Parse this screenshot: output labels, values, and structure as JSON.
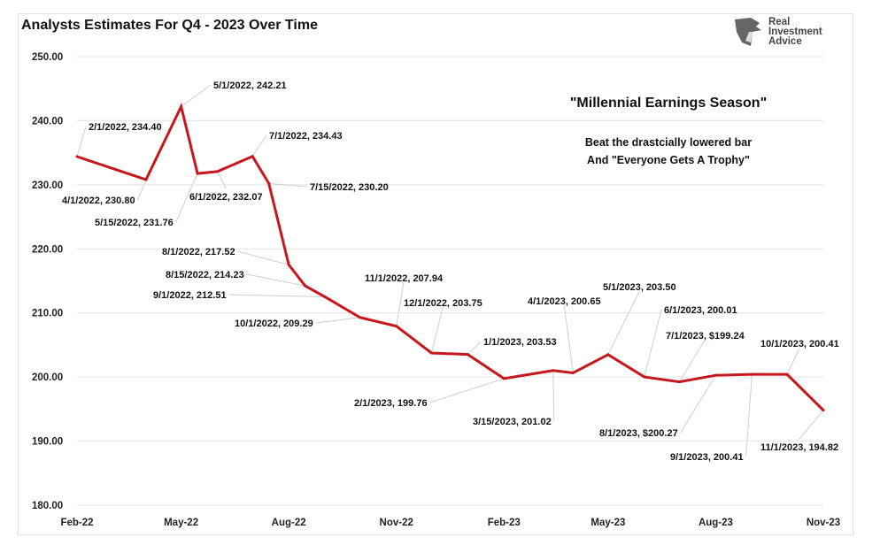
{
  "chart_data": {
    "type": "line",
    "title": "Analysts Estimates For Q4 - 2023 Over Time",
    "xlabel": "",
    "ylabel": "",
    "ylim": [
      180,
      250
    ],
    "yticks": [
      "250.00",
      "240.00",
      "230.00",
      "220.00",
      "210.00",
      "200.00",
      "190.00",
      "180.00"
    ],
    "xlim": [
      "2022-02-01",
      "2023-11-01"
    ],
    "xticks": [
      {
        "date": "2022-02-01",
        "label": "Feb-22"
      },
      {
        "date": "2022-05-01",
        "label": "May-22"
      },
      {
        "date": "2022-08-01",
        "label": "Aug-22"
      },
      {
        "date": "2022-11-01",
        "label": "Nov-22"
      },
      {
        "date": "2023-02-01",
        "label": "Feb-23"
      },
      {
        "date": "2023-05-01",
        "label": "May-23"
      },
      {
        "date": "2023-08-01",
        "label": "Aug-23"
      },
      {
        "date": "2023-11-01",
        "label": "Nov-23"
      }
    ],
    "grid": true,
    "line_color": "#c8161d",
    "points": [
      {
        "x": "2022-02-01",
        "y": 234.4,
        "label": "2/1/2022,  234.40"
      },
      {
        "x": "2022-04-01",
        "y": 230.8,
        "label": "4/1/2022,  230.80"
      },
      {
        "x": "2022-05-01",
        "y": 242.21,
        "label": "5/1/2022,  242.21"
      },
      {
        "x": "2022-05-15",
        "y": 231.76,
        "label": "5/15/2022,  231.76"
      },
      {
        "x": "2022-06-01",
        "y": 232.07,
        "label": "6/1/2022,  232.07"
      },
      {
        "x": "2022-07-01",
        "y": 234.43,
        "label": "7/1/2022,  234.43"
      },
      {
        "x": "2022-07-15",
        "y": 230.2,
        "label": "7/15/2022,  230.20"
      },
      {
        "x": "2022-08-01",
        "y": 217.52,
        "label": "8/1/2022,  217.52"
      },
      {
        "x": "2022-08-15",
        "y": 214.23,
        "label": "8/15/2022,  214.23"
      },
      {
        "x": "2022-09-01",
        "y": 212.51,
        "label": "9/1/2022,  212.51"
      },
      {
        "x": "2022-10-01",
        "y": 209.29,
        "label": "10/1/2022,  209.29"
      },
      {
        "x": "2022-11-01",
        "y": 207.94,
        "label": "11/1/2022,  207.94"
      },
      {
        "x": "2022-12-01",
        "y": 203.75,
        "label": "12/1/2022,  203.75"
      },
      {
        "x": "2023-01-01",
        "y": 203.53,
        "label": "1/1/2023,  203.53"
      },
      {
        "x": "2023-02-01",
        "y": 199.76,
        "label": "2/1/2023,  199.76"
      },
      {
        "x": "2023-03-15",
        "y": 201.02,
        "label": "3/15/2023,  201.02"
      },
      {
        "x": "2023-04-01",
        "y": 200.65,
        "label": "4/1/2023,  200.65"
      },
      {
        "x": "2023-05-01",
        "y": 203.5,
        "label": "5/1/2023, 203.50"
      },
      {
        "x": "2023-06-01",
        "y": 200.01,
        "label": "6/1/2023,  200.01"
      },
      {
        "x": "2023-07-01",
        "y": 199.24,
        "label": "7/1/2023, $199.24"
      },
      {
        "x": "2023-08-01",
        "y": 200.27,
        "label": "8/1/2023, $200.27"
      },
      {
        "x": "2023-09-01",
        "y": 200.41,
        "label": "9/1/2023,  200.41"
      },
      {
        "x": "2023-10-01",
        "y": 200.41,
        "label": "10/1/2023,  200.41"
      },
      {
        "x": "2023-11-01",
        "y": 194.82,
        "label": "11/1/2023,  194.82"
      }
    ],
    "annotations": {
      "headline": "\"Millennial Earnings Season\"",
      "line1": "Beat the drastcially lowered bar",
      "line2": "And \"Everyone Gets A Trophy\""
    }
  },
  "logo": {
    "line1": "Real",
    "line2": "Investment",
    "line3": "Advice"
  }
}
